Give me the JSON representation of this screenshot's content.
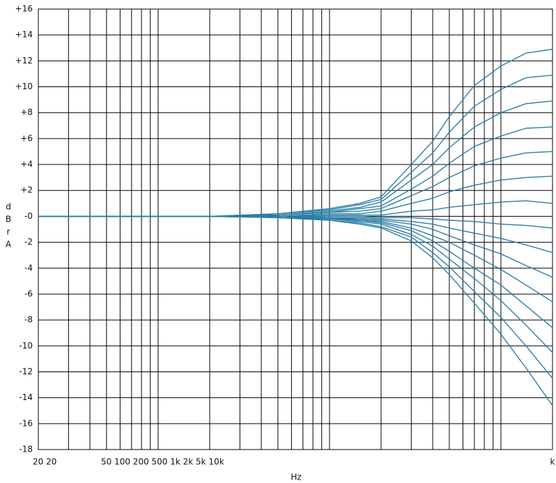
{
  "chart_data": {
    "type": "line",
    "x_label": "Hz",
    "y_label_letters": [
      "d",
      "B",
      "r",
      "A"
    ],
    "x_scale": "log",
    "xlim": [
      20,
      20000
    ],
    "xticks": [
      20,
      30,
      40,
      50,
      60,
      70,
      80,
      90,
      100,
      200,
      300,
      400,
      500,
      600,
      700,
      800,
      900,
      1000,
      2000,
      3000,
      4000,
      5000,
      6000,
      7000,
      8000,
      9000,
      10000,
      20000
    ],
    "x_tick_texts": [
      "20 20",
      "50 100 200 500 1k 2k 5k 10k",
      "k"
    ],
    "ylim": [
      -18,
      16
    ],
    "yticks": [
      {
        "value": 16,
        "label": "+16"
      },
      {
        "value": 14,
        "label": "+14"
      },
      {
        "value": 12,
        "label": "+12"
      },
      {
        "value": 10,
        "label": "+10"
      },
      {
        "value": 8,
        "label": "+8"
      },
      {
        "value": 6,
        "label": "+6"
      },
      {
        "value": 4,
        "label": "+4"
      },
      {
        "value": 2,
        "label": "+2"
      },
      {
        "value": 0,
        "label": "-0"
      },
      -2,
      -4,
      -6,
      -8,
      -10,
      -12,
      -14,
      -16,
      -18
    ],
    "grid": true,
    "color": "#2b7ea6",
    "x": [
      20,
      50,
      100,
      200,
      500,
      1000,
      1500,
      2000,
      3000,
      4000,
      5000,
      7000,
      10000,
      14000,
      20000
    ],
    "series": [
      {
        "values": [
          0,
          0,
          0,
          0,
          0.2,
          0.6,
          1.0,
          1.5,
          4.0,
          5.8,
          7.7,
          10.1,
          11.6,
          12.6,
          12.9
        ]
      },
      {
        "values": [
          0,
          0,
          0,
          0,
          0.2,
          0.5,
          0.9,
          1.3,
          3.4,
          4.9,
          6.5,
          8.5,
          9.8,
          10.7,
          10.9
        ]
      },
      {
        "values": [
          0,
          0,
          0,
          0,
          0.1,
          0.4,
          0.7,
          1.1,
          2.8,
          4.0,
          5.3,
          6.9,
          8.0,
          8.7,
          8.9
        ]
      },
      {
        "values": [
          0,
          0,
          0,
          0,
          0.1,
          0.3,
          0.6,
          0.8,
          2.1,
          3.1,
          4.1,
          5.4,
          6.2,
          6.8,
          6.9
        ]
      },
      {
        "values": [
          0,
          0,
          0,
          0,
          0.1,
          0.3,
          0.4,
          0.6,
          1.6,
          2.3,
          3.0,
          3.9,
          4.5,
          4.9,
          5.0
        ]
      },
      {
        "values": [
          0,
          0,
          0,
          0,
          0,
          0.2,
          0.2,
          0.4,
          1.0,
          1.4,
          1.9,
          2.4,
          2.8,
          3.0,
          3.1
        ]
      },
      {
        "values": [
          0,
          0,
          0,
          0,
          0,
          0.1,
          0.1,
          0.1,
          0.4,
          0.5,
          0.7,
          0.9,
          1.1,
          1.2,
          1.0
        ]
      },
      {
        "values": [
          0,
          0,
          0,
          0,
          0,
          0,
          0,
          -0.1,
          -0.1,
          -0.2,
          -0.3,
          -0.4,
          -0.6,
          -0.7,
          -0.9
        ]
      },
      {
        "values": [
          0,
          0,
          0,
          0,
          0,
          -0.1,
          -0.1,
          -0.2,
          -0.4,
          -0.6,
          -0.9,
          -1.3,
          -1.7,
          -2.2,
          -2.8
        ]
      },
      {
        "values": [
          0,
          0,
          0,
          0,
          0,
          -0.1,
          -0.2,
          -0.3,
          -0.6,
          -1.0,
          -1.5,
          -2.2,
          -2.9,
          -3.8,
          -4.7
        ]
      },
      {
        "values": [
          0,
          0,
          0,
          0,
          0,
          -0.1,
          -0.3,
          -0.4,
          -0.9,
          -1.5,
          -2.0,
          -3.0,
          -4.1,
          -5.3,
          -6.6
        ]
      },
      {
        "values": [
          0,
          0,
          0,
          0,
          0,
          -0.2,
          -0.3,
          -0.5,
          -1.1,
          -1.9,
          -2.7,
          -4.0,
          -5.3,
          -6.9,
          -8.6
        ]
      },
      {
        "values": [
          0,
          0,
          0,
          0,
          -0.1,
          -0.2,
          -0.4,
          -0.6,
          -1.4,
          -2.3,
          -3.3,
          -4.8,
          -6.5,
          -8.4,
          -10.5
        ]
      },
      {
        "values": [
          0,
          0,
          0,
          0,
          -0.1,
          -0.3,
          -0.5,
          -0.8,
          -1.6,
          -2.8,
          -3.9,
          -5.8,
          -7.8,
          -10.0,
          -12.5
        ]
      },
      {
        "values": [
          0,
          0,
          0,
          0,
          -0.1,
          -0.3,
          -0.6,
          -0.9,
          -1.9,
          -3.2,
          -4.5,
          -6.7,
          -9.1,
          -11.7,
          -14.6
        ]
      }
    ]
  }
}
